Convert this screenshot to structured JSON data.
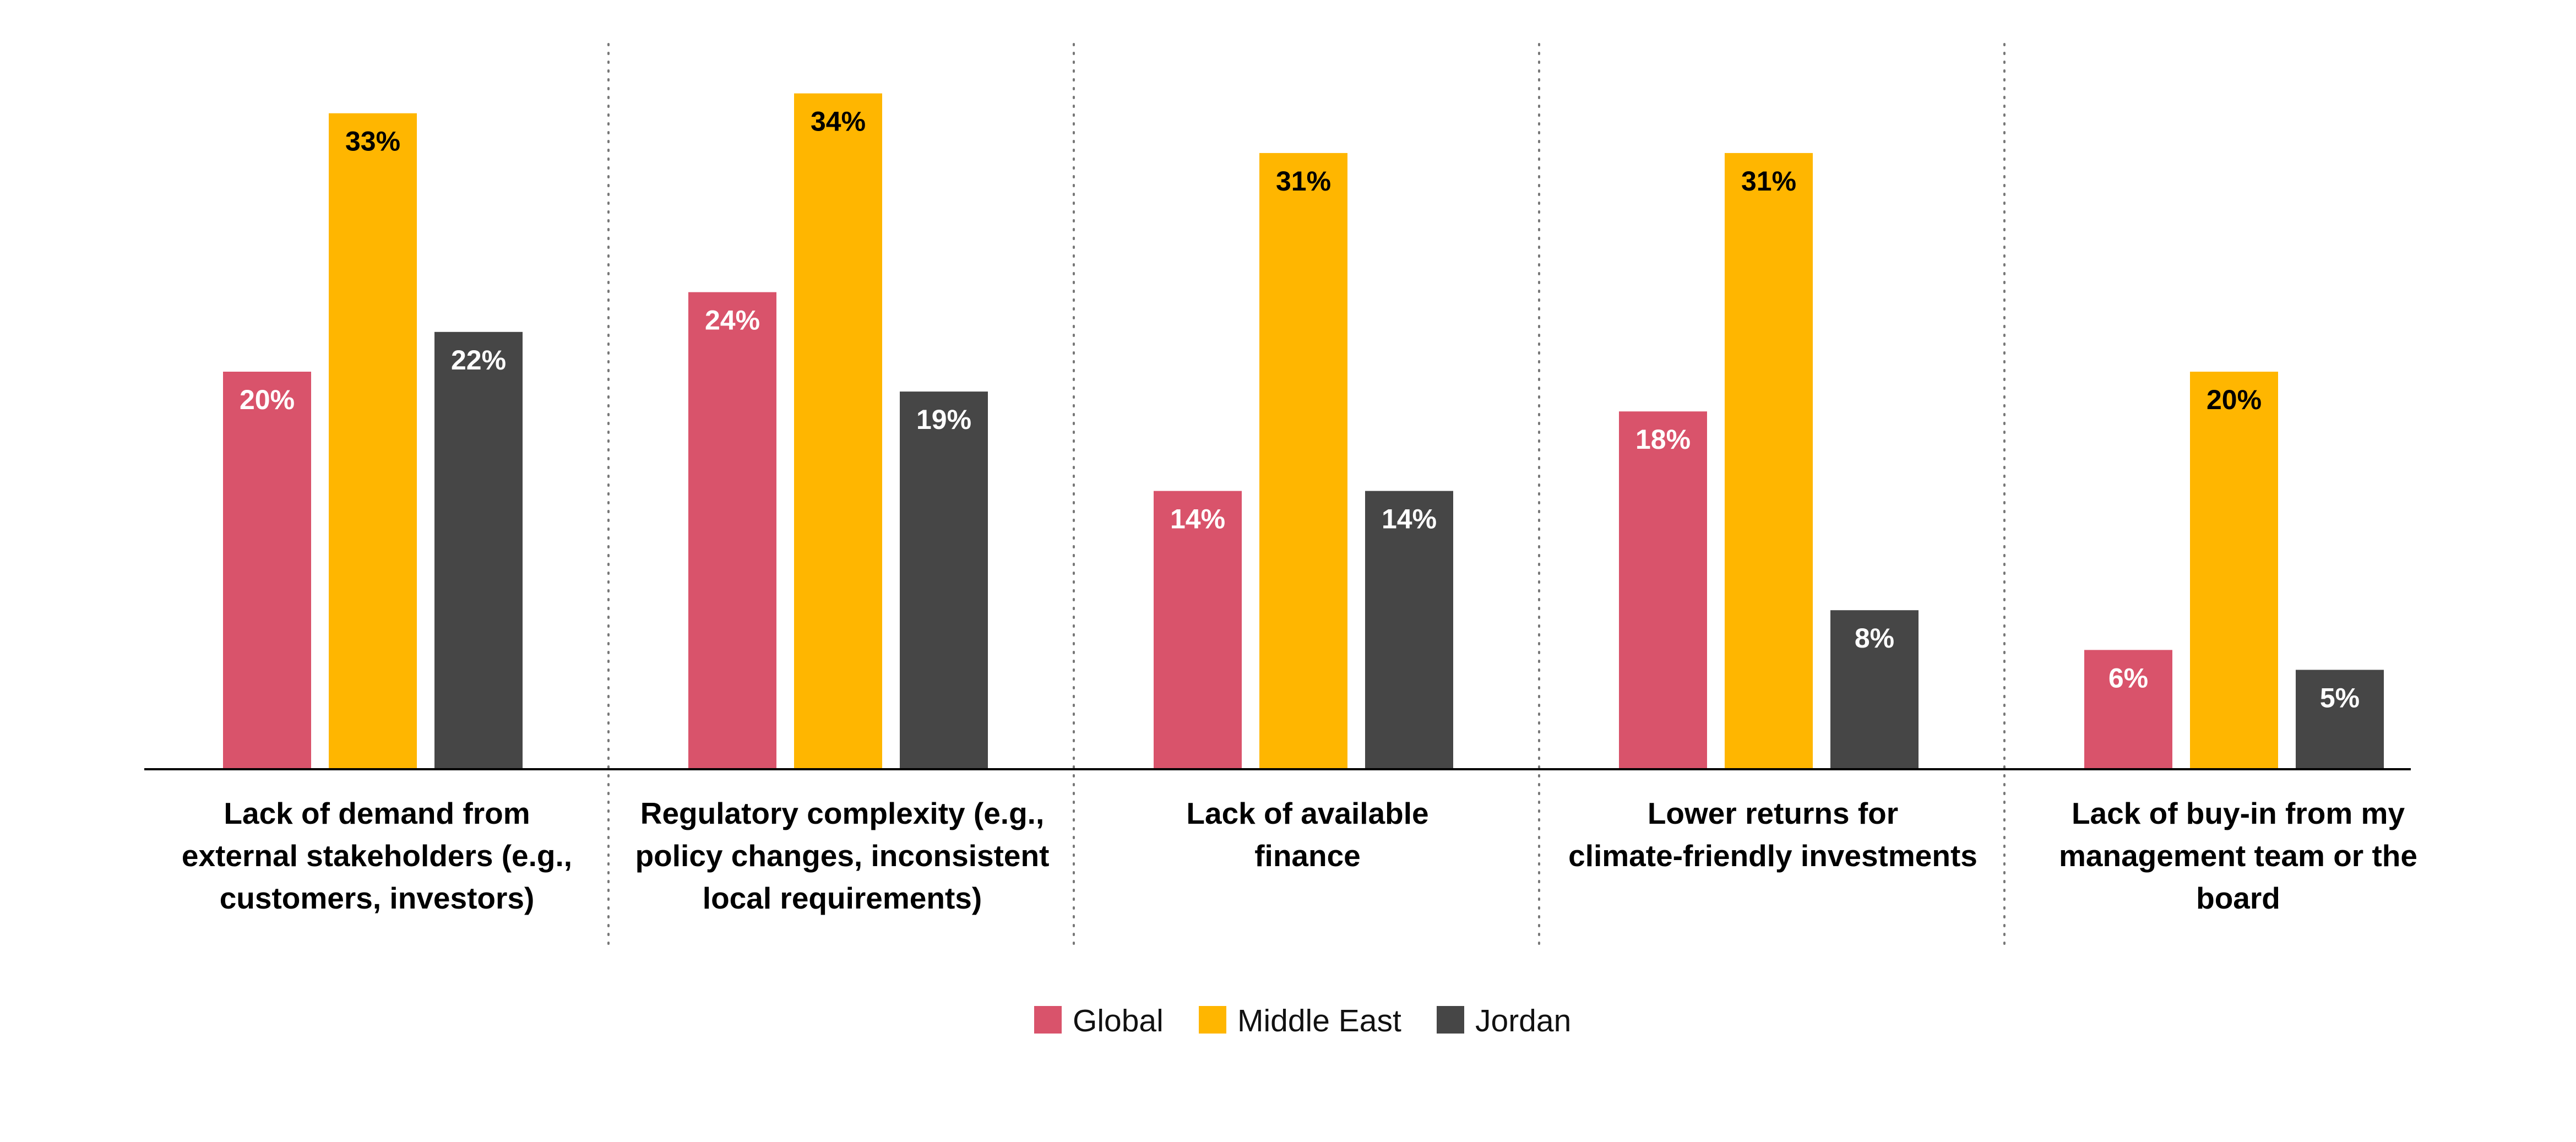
{
  "chart_data": {
    "type": "bar",
    "categories": [
      [
        "Lack of demand from",
        "external stakeholders (e.g.,",
        "customers, investors)"
      ],
      [
        "Regulatory complexity (e.g.,",
        "policy changes, inconsistent",
        "local requirements)"
      ],
      [
        "Lack of available",
        "finance"
      ],
      [
        "Lower returns for",
        "climate-friendly investments"
      ],
      [
        "Lack of buy-in from my",
        "management team or the",
        "board"
      ]
    ],
    "series": [
      {
        "name": "Global",
        "color": "#d9536b",
        "label_color": "#ffffff",
        "values": [
          20,
          24,
          14,
          18,
          6
        ],
        "labels": [
          "20%",
          "24%",
          "14%",
          "18%",
          "6%"
        ]
      },
      {
        "name": "Middle East",
        "color": "#ffb600",
        "label_color": "#000000",
        "values": [
          33,
          34,
          31,
          31,
          20
        ],
        "labels": [
          "33%",
          "34%",
          "31%",
          "31%",
          "20%"
        ]
      },
      {
        "name": "Jordan",
        "color": "#464646",
        "label_color": "#ffffff",
        "values": [
          22,
          19,
          14,
          8,
          5
        ],
        "labels": [
          "22%",
          "19%",
          "14%",
          "8%",
          "5%"
        ]
      }
    ],
    "ylim": [
      0,
      38
    ],
    "grid": false,
    "category_separators": "dotted",
    "legend_position": "bottom-center"
  }
}
